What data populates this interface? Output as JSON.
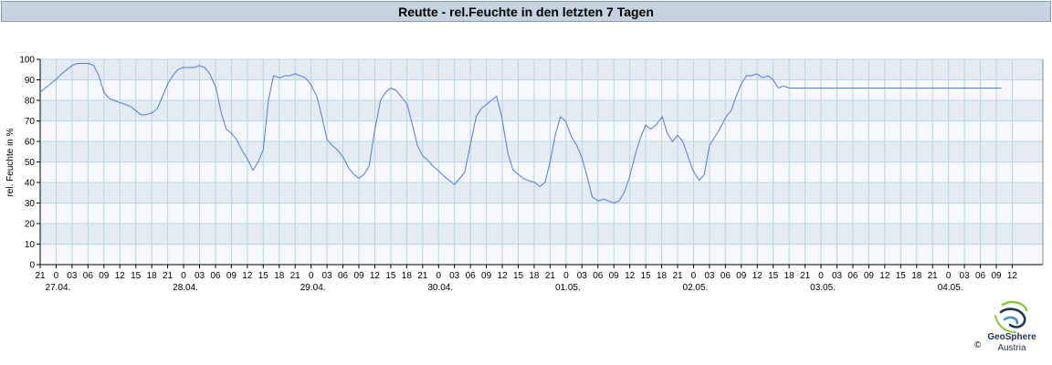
{
  "header": {
    "title": "Reutte - rel.Feuchte in den letzten 7 Tagen"
  },
  "brand": {
    "name": "GeoSphere",
    "sub": "Austria",
    "copyright": "©"
  },
  "colors": {
    "line": "#4f7ad6",
    "band_dark": "#e6ebf2",
    "band_light": "#f6f8fb",
    "grid": "#b5d4ea"
  },
  "chart_data": {
    "type": "line",
    "title": "Reutte - rel.Feuchte in den letzten 7 Tagen",
    "ylabel": "rel. Feuchte in %",
    "xlabel": "",
    "ylim": [
      0,
      100
    ],
    "yticks": [
      "0",
      "10",
      "20",
      "30",
      "40",
      "50",
      "60",
      "70",
      "80",
      "90",
      "100"
    ],
    "x_hours_range": [
      0,
      7.55
    ],
    "hour_ticks": [
      "21",
      "0",
      "03",
      "06",
      "09",
      "12",
      "15",
      "18",
      "21",
      "0",
      "03",
      "06",
      "09",
      "12",
      "15",
      "18",
      "21",
      "0",
      "03",
      "06",
      "09",
      "12",
      "15",
      "18",
      "21",
      "0",
      "03",
      "06",
      "09",
      "12",
      "15",
      "18",
      "21",
      "0",
      "03",
      "06",
      "09",
      "12",
      "15",
      "18",
      "21",
      "0",
      "03",
      "06",
      "09",
      "12",
      "15",
      "18",
      "21",
      "0",
      "03",
      "06",
      "09",
      "12",
      "15",
      "18",
      "21",
      "0",
      "03",
      "06",
      "09",
      "12"
    ],
    "date_labels": [
      "27.04.",
      "28.04.",
      "29.04.",
      "30.04.",
      "01.05.",
      "02.05.",
      "03.05.",
      "04.05."
    ],
    "grid": true,
    "series": [
      {
        "x": [
          0,
          0.04,
          0.08,
          0.12,
          0.17,
          0.21,
          0.25,
          0.29,
          0.33,
          0.38,
          0.42,
          0.46,
          0.5,
          0.54,
          0.58,
          0.62,
          0.67,
          0.71,
          0.75,
          0.79,
          0.83,
          0.88,
          0.92,
          0.96,
          1,
          1.04,
          1.08,
          1.12,
          1.17,
          1.21,
          1.25,
          1.29,
          1.33,
          1.38,
          1.42,
          1.46,
          1.5,
          1.54,
          1.58,
          1.62,
          1.67,
          1.71,
          1.75,
          1.79,
          1.83,
          1.88,
          1.92,
          1.96,
          2,
          2.04,
          2.08,
          2.12,
          2.17,
          2.21,
          2.25,
          2.29,
          2.33,
          2.38,
          2.42,
          2.46,
          2.5,
          2.54,
          2.58,
          2.62,
          2.67,
          2.71,
          2.75,
          2.79,
          2.83,
          2.88,
          2.92,
          2.96,
          3,
          3.04,
          3.08,
          3.12,
          3.17,
          3.21,
          3.25,
          3.29,
          3.33,
          3.38,
          3.42,
          3.46,
          3.5,
          3.54,
          3.58,
          3.62,
          3.67,
          3.71,
          3.75,
          3.79,
          3.83,
          3.88,
          3.92,
          3.96,
          4,
          4.04,
          4.08,
          4.12,
          4.17,
          4.21,
          4.25,
          4.29,
          4.33,
          4.38,
          4.42,
          4.46,
          4.5,
          4.54,
          4.58,
          4.62,
          4.67,
          4.71,
          4.75,
          4.79,
          4.83,
          4.88,
          4.92,
          4.96,
          5,
          5.04,
          5.08,
          5.12,
          5.17,
          5.21,
          5.25,
          5.29,
          5.33,
          5.38,
          5.42,
          5.46,
          5.5,
          5.54,
          5.58,
          5.62,
          5.67,
          5.71,
          5.75,
          5.79,
          5.83,
          5.88,
          5.92,
          5.96,
          6,
          6.04,
          6.08,
          6.12,
          6.17,
          6.21,
          6.25,
          6.29,
          6.33,
          6.38,
          6.42,
          6.46,
          6.5,
          6.54,
          6.58,
          6.62,
          6.67,
          6.71,
          6.75,
          6.79,
          6.83,
          6.88,
          6.92,
          6.96,
          7,
          7.04,
          7.08,
          7.12,
          7.17,
          7.21,
          7.25,
          7.29,
          7.33,
          7.38,
          7.42,
          7.46,
          7.5,
          7.54
        ],
        "y": [
          84,
          86,
          88,
          90,
          93,
          95,
          97,
          98,
          98,
          98,
          97,
          92,
          84,
          81,
          80,
          79,
          78,
          77,
          75,
          73,
          73,
          74,
          76,
          82,
          88,
          92,
          95,
          96,
          96,
          96,
          97,
          96,
          93,
          86,
          74,
          66,
          64,
          61,
          56,
          52,
          46,
          50,
          56,
          80,
          92,
          91,
          92,
          92,
          93,
          92,
          91,
          88,
          82,
          72,
          61,
          58,
          56,
          52,
          47,
          44,
          42,
          44,
          48,
          64,
          80,
          84,
          86,
          85,
          82,
          78,
          68,
          58,
          53,
          51,
          48,
          46,
          43,
          41,
          39,
          42,
          45,
          60,
          72,
          76,
          78,
          80,
          82,
          72,
          54,
          46,
          44,
          42,
          41,
          40,
          38,
          40,
          50,
          63,
          72,
          70,
          62,
          58,
          52,
          43,
          33,
          31,
          32,
          31,
          30,
          31,
          35,
          42,
          54,
          62,
          68,
          66,
          68,
          72,
          64,
          60,
          63,
          60,
          53,
          46,
          41,
          44,
          58,
          62,
          66,
          72,
          75,
          82,
          88,
          92,
          92,
          93,
          91,
          92,
          90,
          86,
          87,
          86,
          86,
          86,
          86,
          86,
          86,
          86,
          86,
          86,
          86,
          86,
          86,
          86,
          86,
          86,
          86,
          86,
          86,
          86,
          86,
          86,
          86,
          86,
          86,
          86,
          86,
          86,
          86,
          86,
          86,
          86,
          86,
          86,
          86,
          86,
          86,
          86,
          86,
          86,
          86,
          86
        ]
      }
    ]
  }
}
